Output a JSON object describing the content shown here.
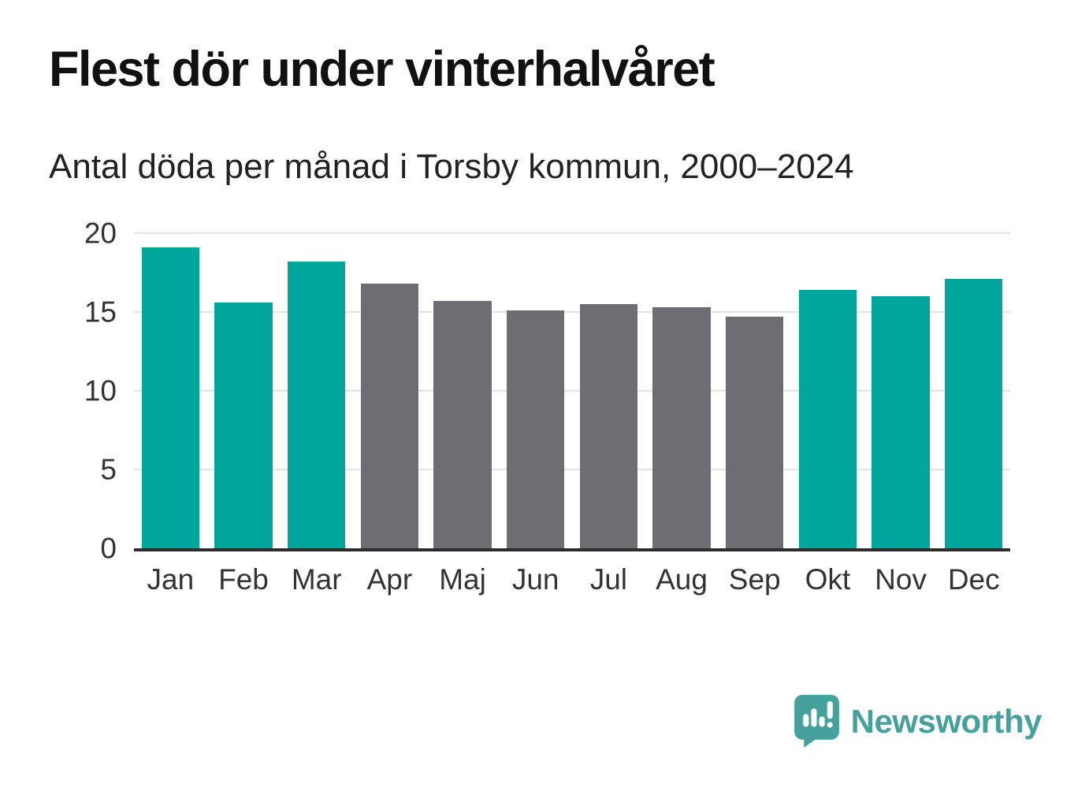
{
  "chart_data": {
    "type": "bar",
    "title": "Flest dör under vinterhalvåret",
    "subtitle": "Antal döda per månad i Torsby kommun, 2000–2024",
    "categories": [
      "Jan",
      "Feb",
      "Mar",
      "Apr",
      "Maj",
      "Jun",
      "Jul",
      "Aug",
      "Sep",
      "Okt",
      "Nov",
      "Dec"
    ],
    "values": [
      19.1,
      15.6,
      18.2,
      16.8,
      15.7,
      15.1,
      15.5,
      15.3,
      14.7,
      16.4,
      16.0,
      17.1
    ],
    "bar_colors": [
      "teal",
      "teal",
      "teal",
      "gray",
      "gray",
      "gray",
      "gray",
      "gray",
      "gray",
      "teal",
      "teal",
      "teal"
    ],
    "xlabel": "",
    "ylabel": "",
    "ylim": [
      0,
      20
    ],
    "yticks": [
      0,
      5,
      10,
      15,
      20
    ],
    "grid": "horizontal",
    "legend": "none"
  },
  "colors": {
    "teal": "#00a59b",
    "gray": "#6d6d72",
    "gridline": "#e3e3e3",
    "axis_line": "#2d2d2d",
    "title_text": "#111111",
    "subtitle_text": "#222222",
    "tick_text": "#333333",
    "brand_teal": "#46a09b"
  },
  "branding": {
    "logo_text": "Newsworthy",
    "logo_icon": "speech-bubble-bar-chart-icon"
  }
}
